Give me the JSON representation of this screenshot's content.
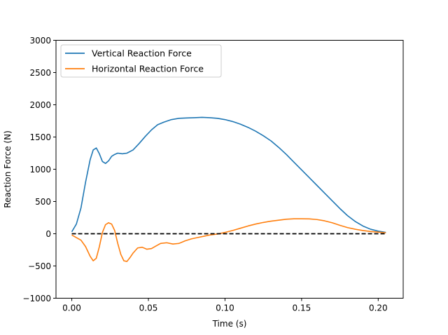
{
  "chart_data": {
    "type": "line",
    "title": "",
    "xlabel": "Time (s)",
    "ylabel": "Reaction Force (N)",
    "xlim": [
      -0.0103,
      0.2163
    ],
    "ylim": [
      -1000,
      3000
    ],
    "xticks": [
      0.0,
      0.05,
      0.1,
      0.15,
      0.2
    ],
    "xtick_labels": [
      "0.00",
      "0.05",
      "0.10",
      "0.15",
      "0.20"
    ],
    "yticks": [
      -1000,
      -500,
      0,
      500,
      1000,
      1500,
      2000,
      2500,
      3000
    ],
    "ytick_labels": [
      "−1000",
      "−500",
      "0",
      "500",
      "1000",
      "1500",
      "2000",
      "2500",
      "3000"
    ],
    "grid": false,
    "legend": "top-left",
    "series": [
      {
        "name": "Vertical Reaction Force",
        "color": "#1f77b4",
        "style": "solid",
        "x": [
          0.0,
          0.003,
          0.006,
          0.009,
          0.012,
          0.014,
          0.016,
          0.018,
          0.02,
          0.022,
          0.024,
          0.026,
          0.028,
          0.03,
          0.033,
          0.036,
          0.04,
          0.044,
          0.048,
          0.052,
          0.056,
          0.06,
          0.065,
          0.07,
          0.075,
          0.08,
          0.085,
          0.09,
          0.095,
          0.1,
          0.105,
          0.11,
          0.115,
          0.12,
          0.125,
          0.13,
          0.135,
          0.14,
          0.145,
          0.15,
          0.155,
          0.16,
          0.165,
          0.17,
          0.175,
          0.18,
          0.185,
          0.19,
          0.195,
          0.2,
          0.205
        ],
        "y": [
          30,
          150,
          400,
          800,
          1150,
          1300,
          1330,
          1240,
          1120,
          1090,
          1130,
          1200,
          1230,
          1250,
          1240,
          1250,
          1300,
          1400,
          1510,
          1610,
          1690,
          1730,
          1770,
          1790,
          1795,
          1800,
          1805,
          1800,
          1790,
          1770,
          1740,
          1700,
          1650,
          1590,
          1520,
          1440,
          1340,
          1230,
          1110,
          990,
          870,
          750,
          630,
          510,
          390,
          280,
          190,
          120,
          70,
          40,
          20
        ]
      },
      {
        "name": "Horizontal Reaction Force",
        "color": "#ff7f0e",
        "style": "solid",
        "x": [
          0.0,
          0.003,
          0.006,
          0.009,
          0.012,
          0.014,
          0.016,
          0.018,
          0.02,
          0.022,
          0.024,
          0.026,
          0.028,
          0.03,
          0.032,
          0.034,
          0.036,
          0.038,
          0.04,
          0.043,
          0.046,
          0.049,
          0.052,
          0.055,
          0.058,
          0.062,
          0.066,
          0.07,
          0.074,
          0.078,
          0.082,
          0.086,
          0.09,
          0.095,
          0.1,
          0.105,
          0.11,
          0.115,
          0.12,
          0.125,
          0.13,
          0.135,
          0.14,
          0.145,
          0.15,
          0.155,
          0.16,
          0.165,
          0.17,
          0.175,
          0.18,
          0.185,
          0.19,
          0.195,
          0.2,
          0.205
        ],
        "y": [
          -20,
          -60,
          -100,
          -200,
          -350,
          -420,
          -380,
          -200,
          20,
          140,
          170,
          150,
          50,
          -150,
          -320,
          -420,
          -430,
          -370,
          -300,
          -220,
          -210,
          -240,
          -230,
          -190,
          -150,
          -140,
          -160,
          -150,
          -110,
          -80,
          -60,
          -40,
          -20,
          -5,
          20,
          50,
          85,
          120,
          150,
          175,
          195,
          210,
          225,
          232,
          232,
          230,
          220,
          200,
          170,
          130,
          95,
          70,
          50,
          35,
          25,
          15
        ]
      },
      {
        "name": "",
        "color": "#000000",
        "style": "dashed",
        "x": [
          0.0,
          0.205
        ],
        "y": [
          0,
          0
        ]
      }
    ]
  }
}
